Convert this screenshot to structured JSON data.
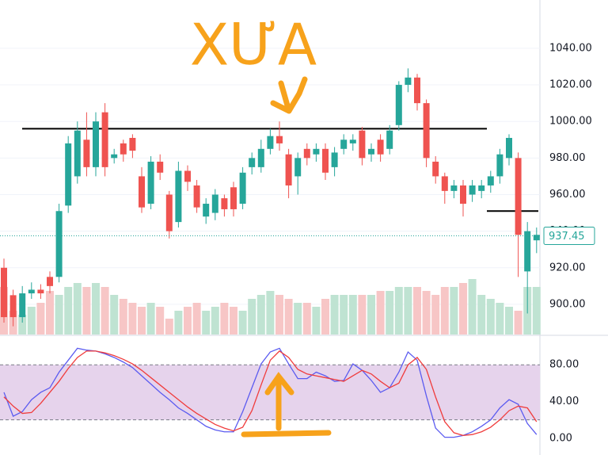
{
  "chart_data": [
    {
      "type": "candlestick",
      "annotation": "XƯA",
      "open": [
        920,
        905,
        893,
        906,
        908,
        915,
        915,
        954,
        970,
        990,
        975,
        1005,
        980,
        988,
        991,
        970,
        955,
        978,
        960,
        945,
        973,
        965,
        948,
        950,
        958,
        964,
        955,
        975,
        975,
        985,
        992,
        982,
        970,
        985,
        982,
        985,
        975,
        985,
        988,
        995,
        982,
        990,
        985,
        998,
        1020,
        1024,
        1010,
        978,
        970,
        962,
        965,
        960,
        962,
        965,
        970,
        980,
        980,
        918,
        935
      ],
      "high": [
        925,
        908,
        910,
        912,
        911,
        918,
        955,
        992,
        1000,
        1005,
        1005,
        1010,
        985,
        990,
        993,
        975,
        981,
        982,
        962,
        978,
        976,
        968,
        958,
        963,
        960,
        967,
        975,
        983,
        990,
        996,
        1000,
        985,
        983,
        988,
        988,
        988,
        986,
        993,
        993,
        997,
        988,
        993,
        998,
        1022,
        1029,
        1026,
        1012,
        981,
        972,
        968,
        968,
        968,
        968,
        973,
        985,
        993,
        983,
        945,
        942
      ],
      "low": [
        890,
        888,
        890,
        903,
        903,
        906,
        912,
        950,
        966,
        970,
        970,
        970,
        977,
        978,
        980,
        950,
        952,
        968,
        936,
        942,
        962,
        950,
        944,
        946,
        948,
        948,
        952,
        971,
        972,
        982,
        984,
        958,
        960,
        976,
        978,
        968,
        970,
        982,
        984,
        976,
        978,
        978,
        982,
        995,
        1016,
        1006,
        975,
        966,
        955,
        958,
        948,
        956,
        958,
        961,
        966,
        976,
        915,
        895,
        928
      ],
      "close": [
        893,
        893,
        906,
        908,
        906,
        910,
        951,
        988,
        995,
        975,
        1000,
        975,
        982,
        982,
        984,
        953,
        978,
        972,
        940,
        973,
        967,
        953,
        955,
        960,
        952,
        952,
        972,
        980,
        985,
        992,
        988,
        965,
        980,
        980,
        985,
        972,
        983,
        990,
        990,
        980,
        985,
        982,
        995,
        1020,
        1024,
        1010,
        980,
        970,
        962,
        965,
        955,
        965,
        965,
        970,
        982,
        991,
        938,
        940,
        938
      ],
      "volume": [
        60,
        30,
        25,
        35,
        40,
        55,
        50,
        60,
        65,
        60,
        65,
        60,
        50,
        45,
        40,
        35,
        40,
        35,
        20,
        30,
        35,
        40,
        30,
        35,
        40,
        35,
        30,
        45,
        50,
        55,
        50,
        45,
        40,
        40,
        35,
        45,
        50,
        50,
        50,
        50,
        50,
        55,
        55,
        60,
        60,
        60,
        55,
        50,
        60,
        60,
        65,
        70,
        50,
        45,
        40,
        35,
        30,
        60,
        60
      ],
      "volume_ylim": [
        0,
        100
      ],
      "up_color": "#26a69a",
      "down_color": "#ef5350",
      "levels": [
        996,
        951
      ],
      "last_price": 937.45,
      "ylim": [
        883.5,
        1066.4
      ],
      "yticks": [
        {
          "value": 900,
          "label": "900.00"
        },
        {
          "value": 920,
          "label": "920.00"
        },
        {
          "value": 940,
          "label": "940.00"
        },
        {
          "value": 960,
          "label": "960.00"
        },
        {
          "value": 980,
          "label": "980.00"
        },
        {
          "value": 1000,
          "label": "1000.00"
        },
        {
          "value": 1020,
          "label": "1020.00"
        },
        {
          "value": 1040,
          "label": "1040.00"
        }
      ]
    },
    {
      "type": "line",
      "series": [
        {
          "color": "#5b5bf0",
          "values": [
            50,
            24,
            29,
            42,
            50,
            55,
            72,
            85,
            98,
            96,
            95,
            92,
            88,
            83,
            77,
            68,
            59,
            50,
            42,
            33,
            27,
            20,
            13,
            9,
            7,
            7,
            29,
            55,
            81,
            94,
            98,
            81,
            65,
            65,
            72,
            68,
            62,
            63,
            81,
            74,
            63,
            50,
            55,
            72,
            94,
            85,
            46,
            11,
            1,
            1,
            3,
            7,
            13,
            20,
            33,
            42,
            37,
            16,
            4
          ]
        },
        {
          "color": "#f03c3c",
          "values": [
            45,
            35,
            27,
            28,
            38,
            50,
            62,
            76,
            88,
            95,
            95,
            93,
            90,
            86,
            81,
            74,
            66,
            58,
            50,
            42,
            34,
            27,
            21,
            15,
            11,
            8,
            12,
            30,
            58,
            85,
            95,
            88,
            75,
            70,
            68,
            66,
            64,
            62,
            68,
            74,
            70,
            62,
            55,
            60,
            80,
            88,
            75,
            45,
            18,
            6,
            3,
            4,
            7,
            12,
            20,
            30,
            35,
            33,
            18
          ]
        }
      ],
      "band": [
        20,
        80
      ],
      "ylim": [
        -18.3,
        111.3
      ],
      "yticks": [
        {
          "value": 0,
          "label": "0.00"
        },
        {
          "value": 40,
          "label": "40.00"
        },
        {
          "value": 80,
          "label": "80.00"
        }
      ]
    }
  ]
}
